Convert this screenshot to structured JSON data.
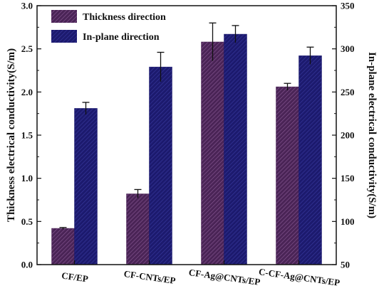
{
  "chart_data": {
    "type": "bar",
    "categories": [
      "CF/EP",
      "CF-CNTs/EP",
      "CF-Ag@CNTs/EP",
      "C-CF-Ag@CNTs/EP"
    ],
    "series": [
      {
        "name": "Thickness direction",
        "axis": "left",
        "color": "#4a2456",
        "values": [
          0.42,
          0.82,
          2.58,
          2.06
        ],
        "error": [
          0.01,
          0.05,
          0.22,
          0.04
        ]
      },
      {
        "name": "In-plane direction",
        "axis": "right",
        "color": "#1c1a6e",
        "values": [
          231,
          279,
          317,
          292
        ],
        "error": [
          7,
          17,
          10,
          10
        ]
      }
    ],
    "ylabel": "Thickness electrical conductivity(S/m)",
    "y2label": "In-plane electrical conductivity(S/m)",
    "ylim": [
      0.0,
      3.0
    ],
    "y2lim": [
      50,
      350
    ],
    "yticks": [
      "0.0",
      "0.5",
      "1.0",
      "1.5",
      "2.0",
      "2.5",
      "3.0"
    ],
    "y2ticks": [
      "50",
      "100",
      "150",
      "200",
      "250",
      "300",
      "350"
    ],
    "legend_position": "top-left",
    "grid": false
  }
}
